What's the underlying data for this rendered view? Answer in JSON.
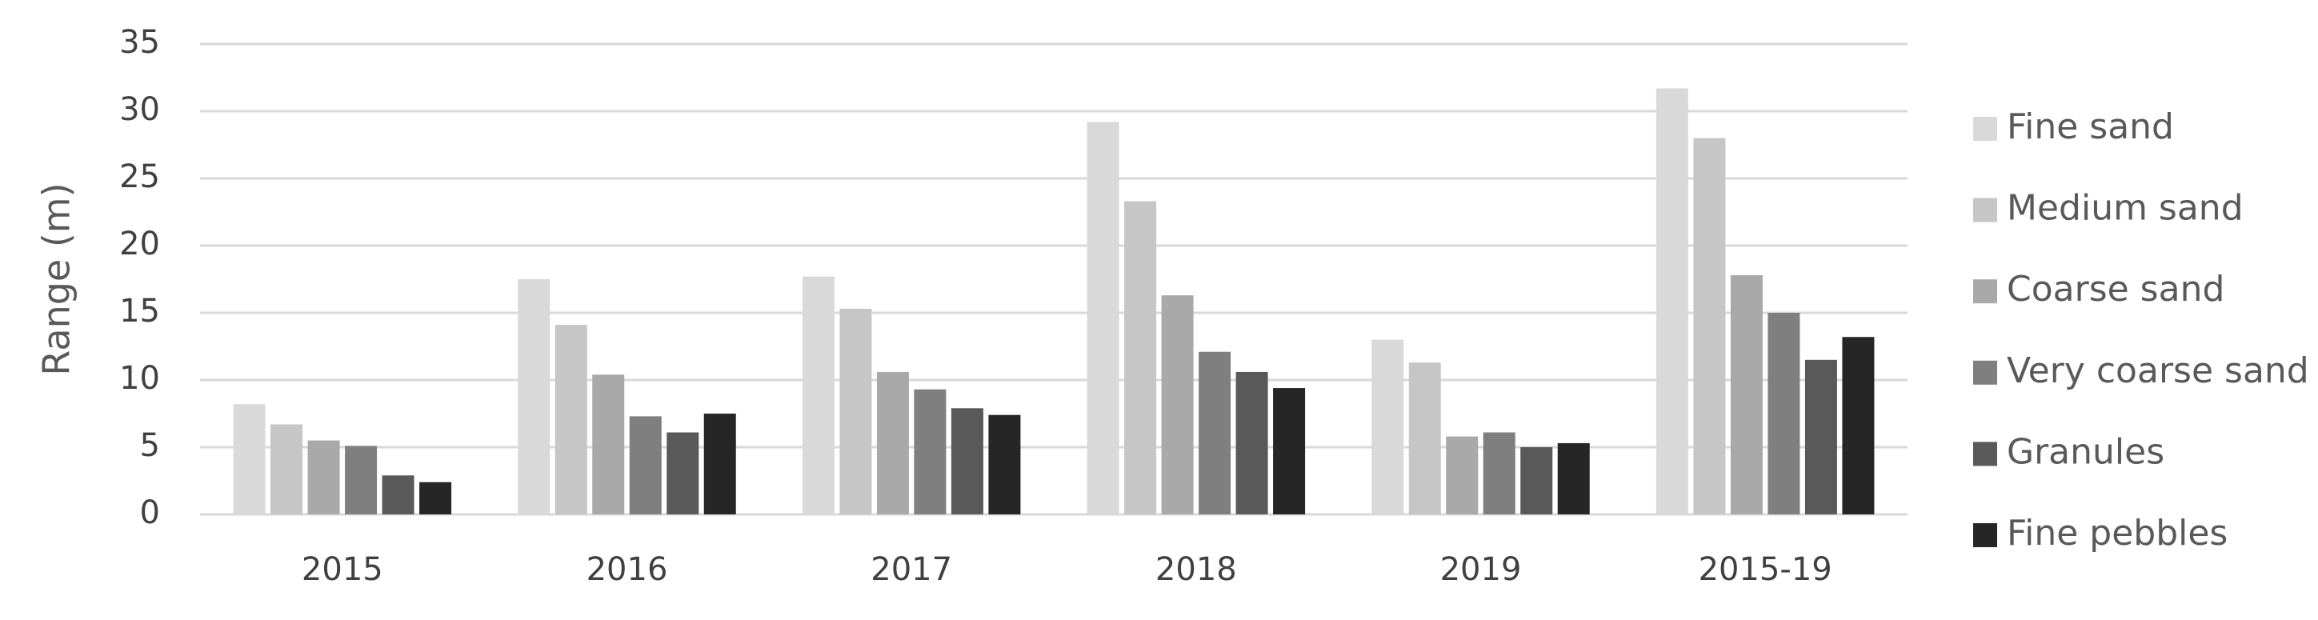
{
  "chart_data": {
    "type": "bar",
    "y_label": "Range (m)",
    "categories": [
      "2015",
      "2016",
      "2017",
      "2018",
      "2019",
      "2015-19"
    ],
    "series": [
      {
        "name": "Fine sand",
        "color": "#d9d9d9",
        "values": [
          8.2,
          17.5,
          17.7,
          29.2,
          13.0,
          31.7
        ]
      },
      {
        "name": "Medium sand",
        "color": "#c6c6c6",
        "values": [
          6.7,
          14.1,
          15.3,
          23.3,
          11.3,
          28.0
        ]
      },
      {
        "name": "Coarse sand",
        "color": "#a9a9a9",
        "values": [
          5.5,
          10.4,
          10.6,
          16.3,
          5.8,
          17.8
        ]
      },
      {
        "name": "Very coarse sand",
        "color": "#7f7f7f",
        "values": [
          5.1,
          7.3,
          9.3,
          12.1,
          6.1,
          15.0
        ]
      },
      {
        "name": "Granules",
        "color": "#595959",
        "values": [
          2.9,
          6.1,
          7.9,
          10.6,
          5.0,
          11.5
        ]
      },
      {
        "name": "Fine pebbles",
        "color": "#262626",
        "values": [
          2.4,
          7.5,
          7.4,
          9.4,
          5.3,
          13.2
        ]
      }
    ],
    "ylim": [
      0,
      35
    ],
    "yticks": [
      0,
      5,
      10,
      15,
      20,
      25,
      30,
      35
    ],
    "grid": true,
    "legend": "right"
  }
}
